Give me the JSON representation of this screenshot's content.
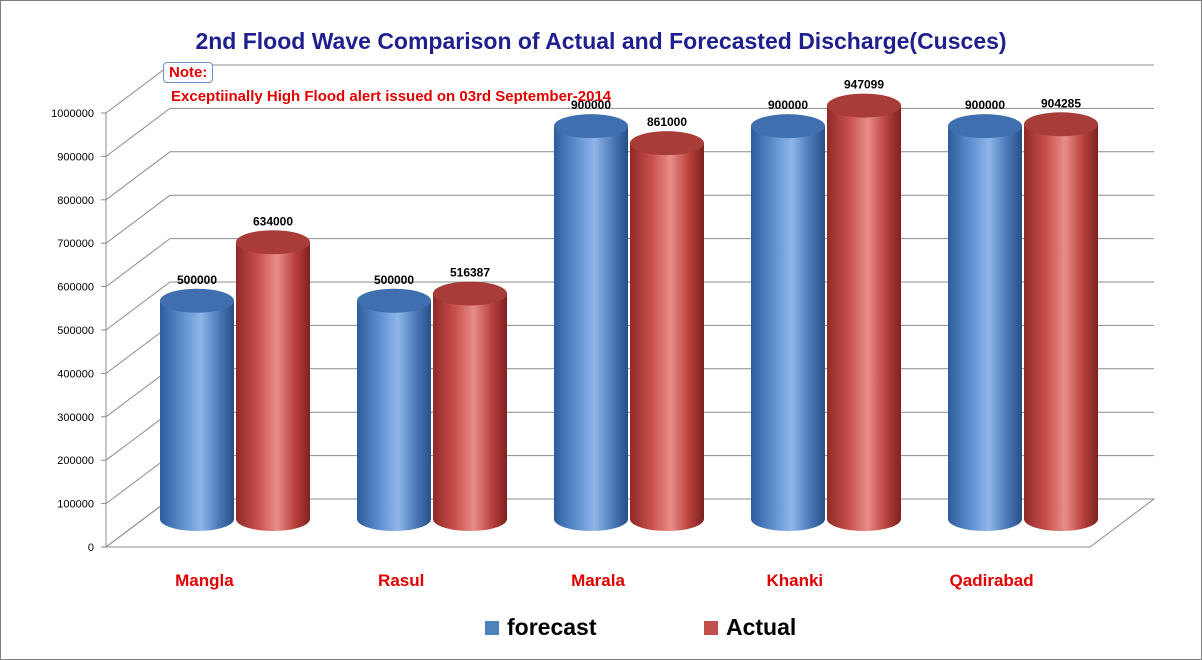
{
  "chart_data": {
    "type": "bar",
    "title": "2nd Flood Wave  Comparison of Actual and Forecasted Discharge(Cusces)",
    "categories": [
      "Mangla",
      "Rasul",
      "Marala",
      "Khanki",
      "Qadirabad"
    ],
    "series": [
      {
        "name": "forecast",
        "color": "#4f81bd",
        "values": [
          500000,
          500000,
          900000,
          900000,
          900000
        ]
      },
      {
        "name": "Actual",
        "color": "#c0504d",
        "values": [
          634000,
          516387,
          861000,
          947099,
          904285
        ]
      }
    ],
    "ylim": [
      0,
      1000000
    ],
    "yticks": [
      0,
      100000,
      200000,
      300000,
      400000,
      500000,
      600000,
      700000,
      800000,
      900000,
      1000000
    ],
    "grid": true,
    "legend": "bottom",
    "xlabel": "",
    "ylabel": "",
    "annotation": {
      "label": "Note:",
      "text": "Exceptiinally High Flood  alert  issued on 03rd September-2014"
    }
  }
}
